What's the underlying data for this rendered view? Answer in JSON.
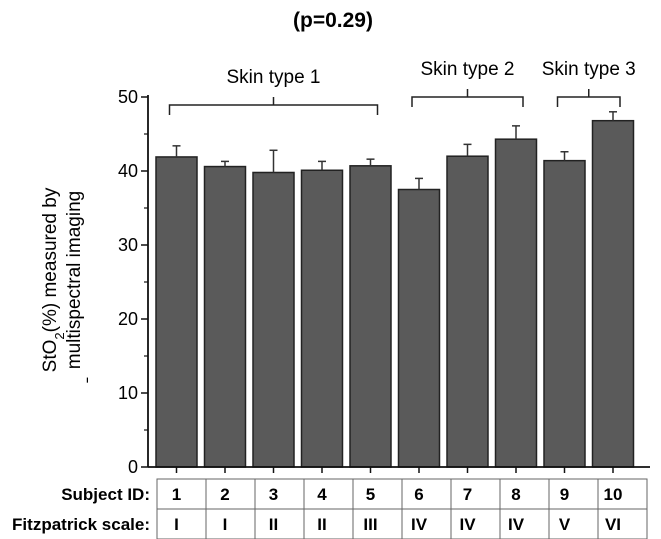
{
  "chart_data": {
    "type": "bar",
    "title": "(p=0.29)",
    "ylabel_line1": "StO2(%) measured by",
    "ylabel_line2": "multispectral imaging",
    "ylabel_mark": "ˉ",
    "ylim": [
      0,
      50
    ],
    "yticks": [
      "0",
      "10",
      "20",
      "30",
      "40",
      "50"
    ],
    "categories": [
      "1",
      "2",
      "3",
      "4",
      "5",
      "6",
      "7",
      "8",
      "9",
      "10"
    ],
    "values": [
      41.9,
      40.6,
      39.8,
      40.1,
      40.7,
      37.5,
      42.0,
      44.3,
      41.4,
      46.8
    ],
    "errors": [
      1.5,
      0.7,
      3.0,
      1.2,
      0.9,
      1.5,
      1.6,
      1.8,
      1.2,
      1.2
    ],
    "bar_color": "#5a5a5a",
    "groups": [
      {
        "label": "Skin type 1",
        "start": 0,
        "end": 4
      },
      {
        "label": "Skin type 2",
        "start": 5,
        "end": 7
      },
      {
        "label": "Skin type 3",
        "start": 8,
        "end": 9
      }
    ],
    "table": {
      "row1_label": "Subject ID:",
      "row2_label": "Fitzpatrick scale:",
      "fitzpatrick": [
        "I",
        "I",
        "II",
        "II",
        "III",
        "IV",
        "IV",
        "IV",
        "V",
        "VI"
      ]
    }
  }
}
